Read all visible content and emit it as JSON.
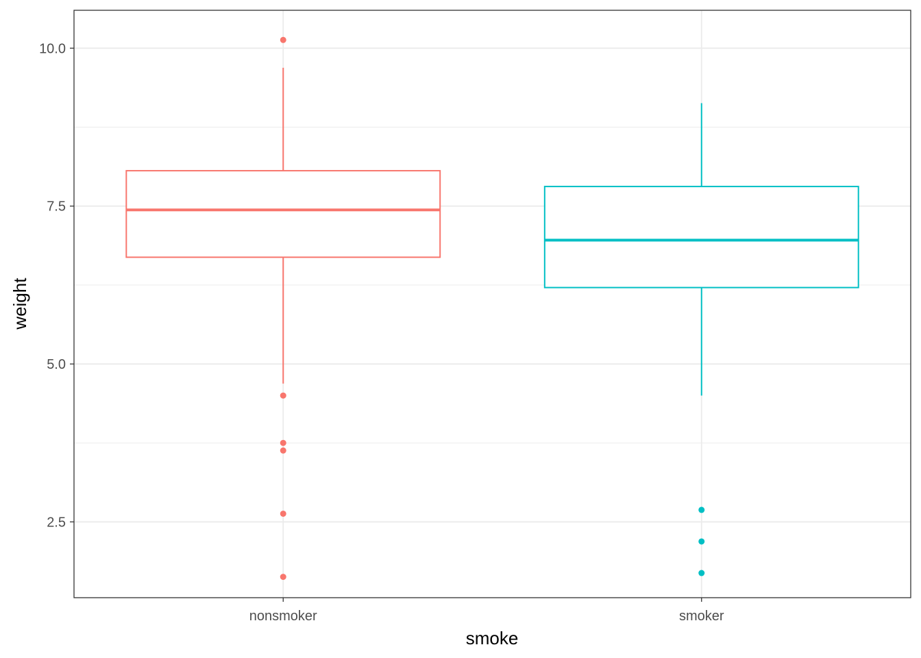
{
  "chart_data": {
    "type": "boxplot",
    "title": "",
    "xlabel": "smoke",
    "ylabel": "weight",
    "categories": [
      "nonsmoker",
      "smoker"
    ],
    "ylim": [
      1.3,
      10.6
    ],
    "y_ticks": [
      2.5,
      5.0,
      7.5,
      10.0
    ],
    "y_tick_labels": [
      "2.5",
      "5.0",
      "7.5",
      "10.0"
    ],
    "y_minor_ticks": [
      3.75,
      6.25,
      8.75
    ],
    "grid": true,
    "legend": "none",
    "boxes": [
      {
        "category": "nonsmoker",
        "color": "#F8766D",
        "whisker_low": 4.69,
        "q1": 6.69,
        "median": 7.44,
        "q3": 8.06,
        "whisker_high": 9.69,
        "outliers": [
          10.13,
          4.5,
          3.75,
          3.63,
          2.63,
          1.63
        ]
      },
      {
        "category": "smoker",
        "color": "#00BFC4",
        "whisker_low": 4.5,
        "q1": 6.21,
        "median": 6.96,
        "q3": 7.81,
        "whisker_high": 9.13,
        "outliers": [
          2.69,
          2.19,
          1.69
        ]
      }
    ]
  }
}
